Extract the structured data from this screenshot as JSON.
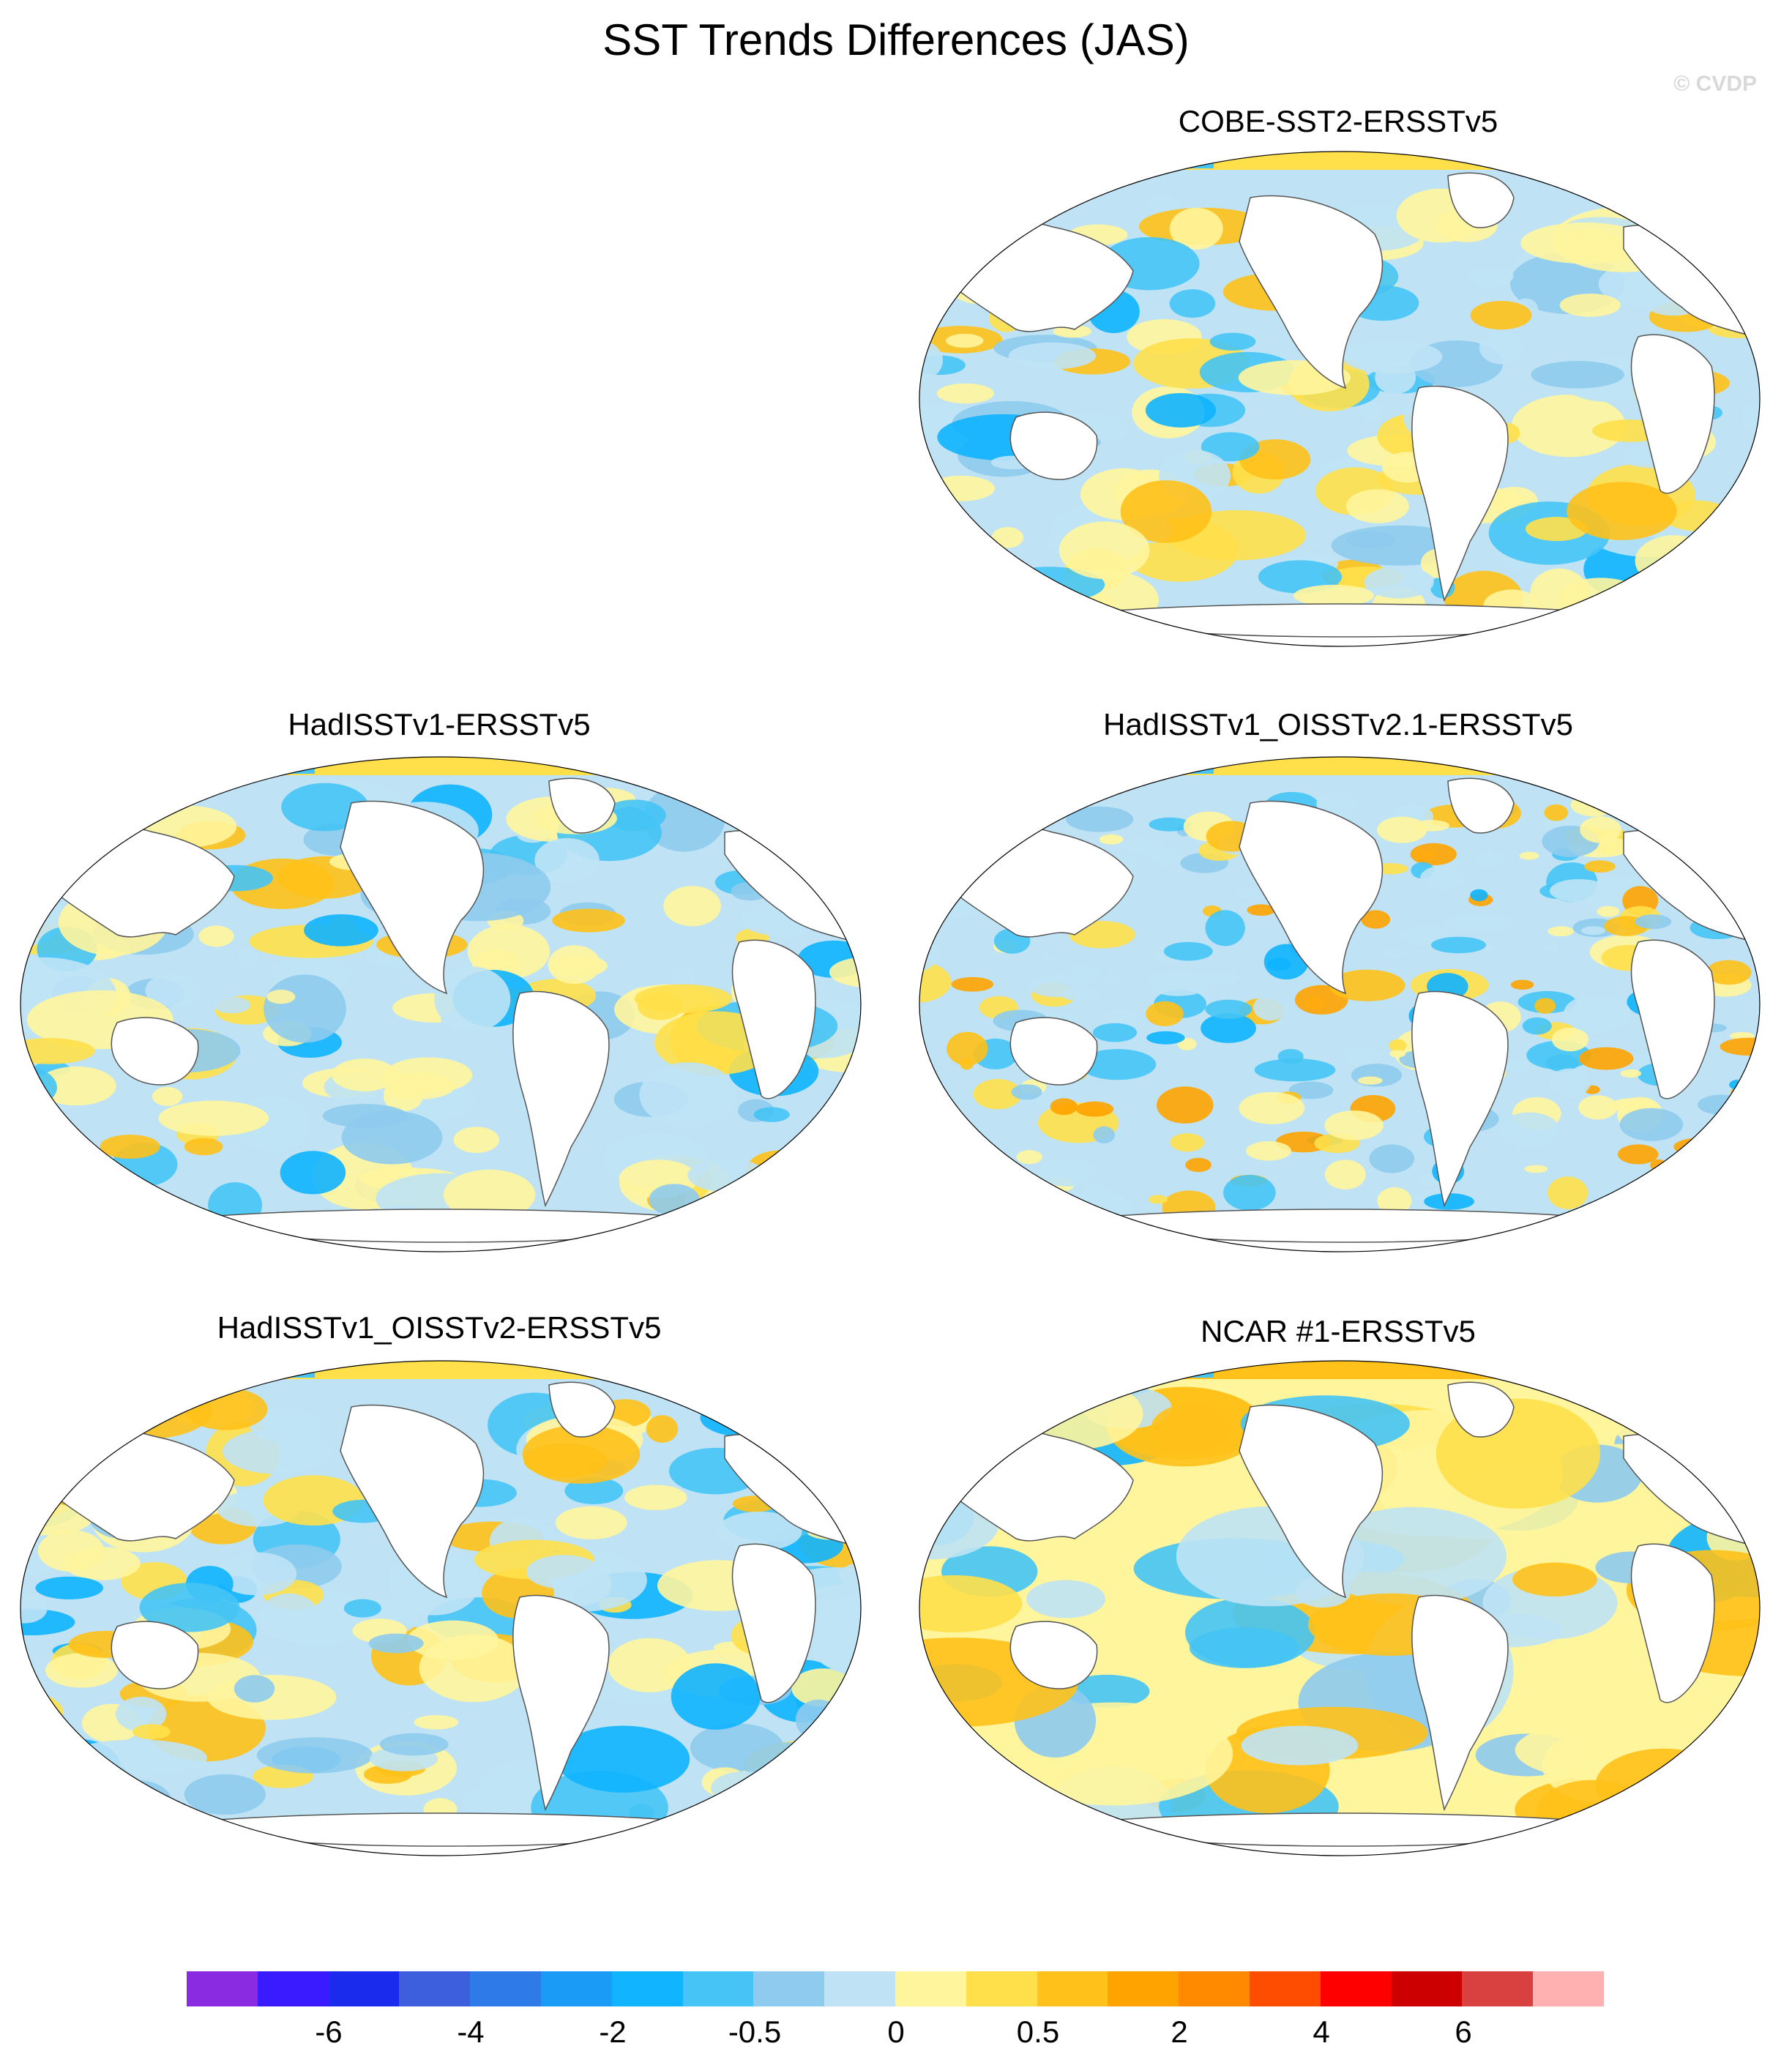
{
  "title": "SST Trends Differences (JAS)",
  "watermark": "© CVDP",
  "panels": [
    {
      "id": "cobe",
      "label": "COBE-SST2-ERSSTv5"
    },
    {
      "id": "hadisst",
      "label": "HadISSTv1-ERSSTv5"
    },
    {
      "id": "hadisst-oisst21",
      "label": "HadISSTv1_OISSTv2.1-ERSSTv5"
    },
    {
      "id": "hadisst-oisst2",
      "label": "HadISSTv1_OISSTv2-ERSSTv5"
    },
    {
      "id": "ncar1",
      "label": "NCAR #1-ERSSTv5"
    }
  ],
  "colorbar": {
    "colors": [
      "#8a2be2",
      "#3a1aff",
      "#1a2bee",
      "#3d5fdd",
      "#2e7ae8",
      "#1a9bf5",
      "#10b4ff",
      "#45c4f5",
      "#8ecbee",
      "#bfe3f5",
      "#fff59d",
      "#ffe04a",
      "#ffc11a",
      "#ffa300",
      "#ff8a00",
      "#ff4d00",
      "#ff0000",
      "#cc0000",
      "#d94141",
      "#ffb0b0"
    ],
    "tick_labels": [
      "-6",
      "-4",
      "-2",
      "-0.5",
      "0",
      "0.5",
      "2",
      "4",
      "6"
    ]
  }
}
